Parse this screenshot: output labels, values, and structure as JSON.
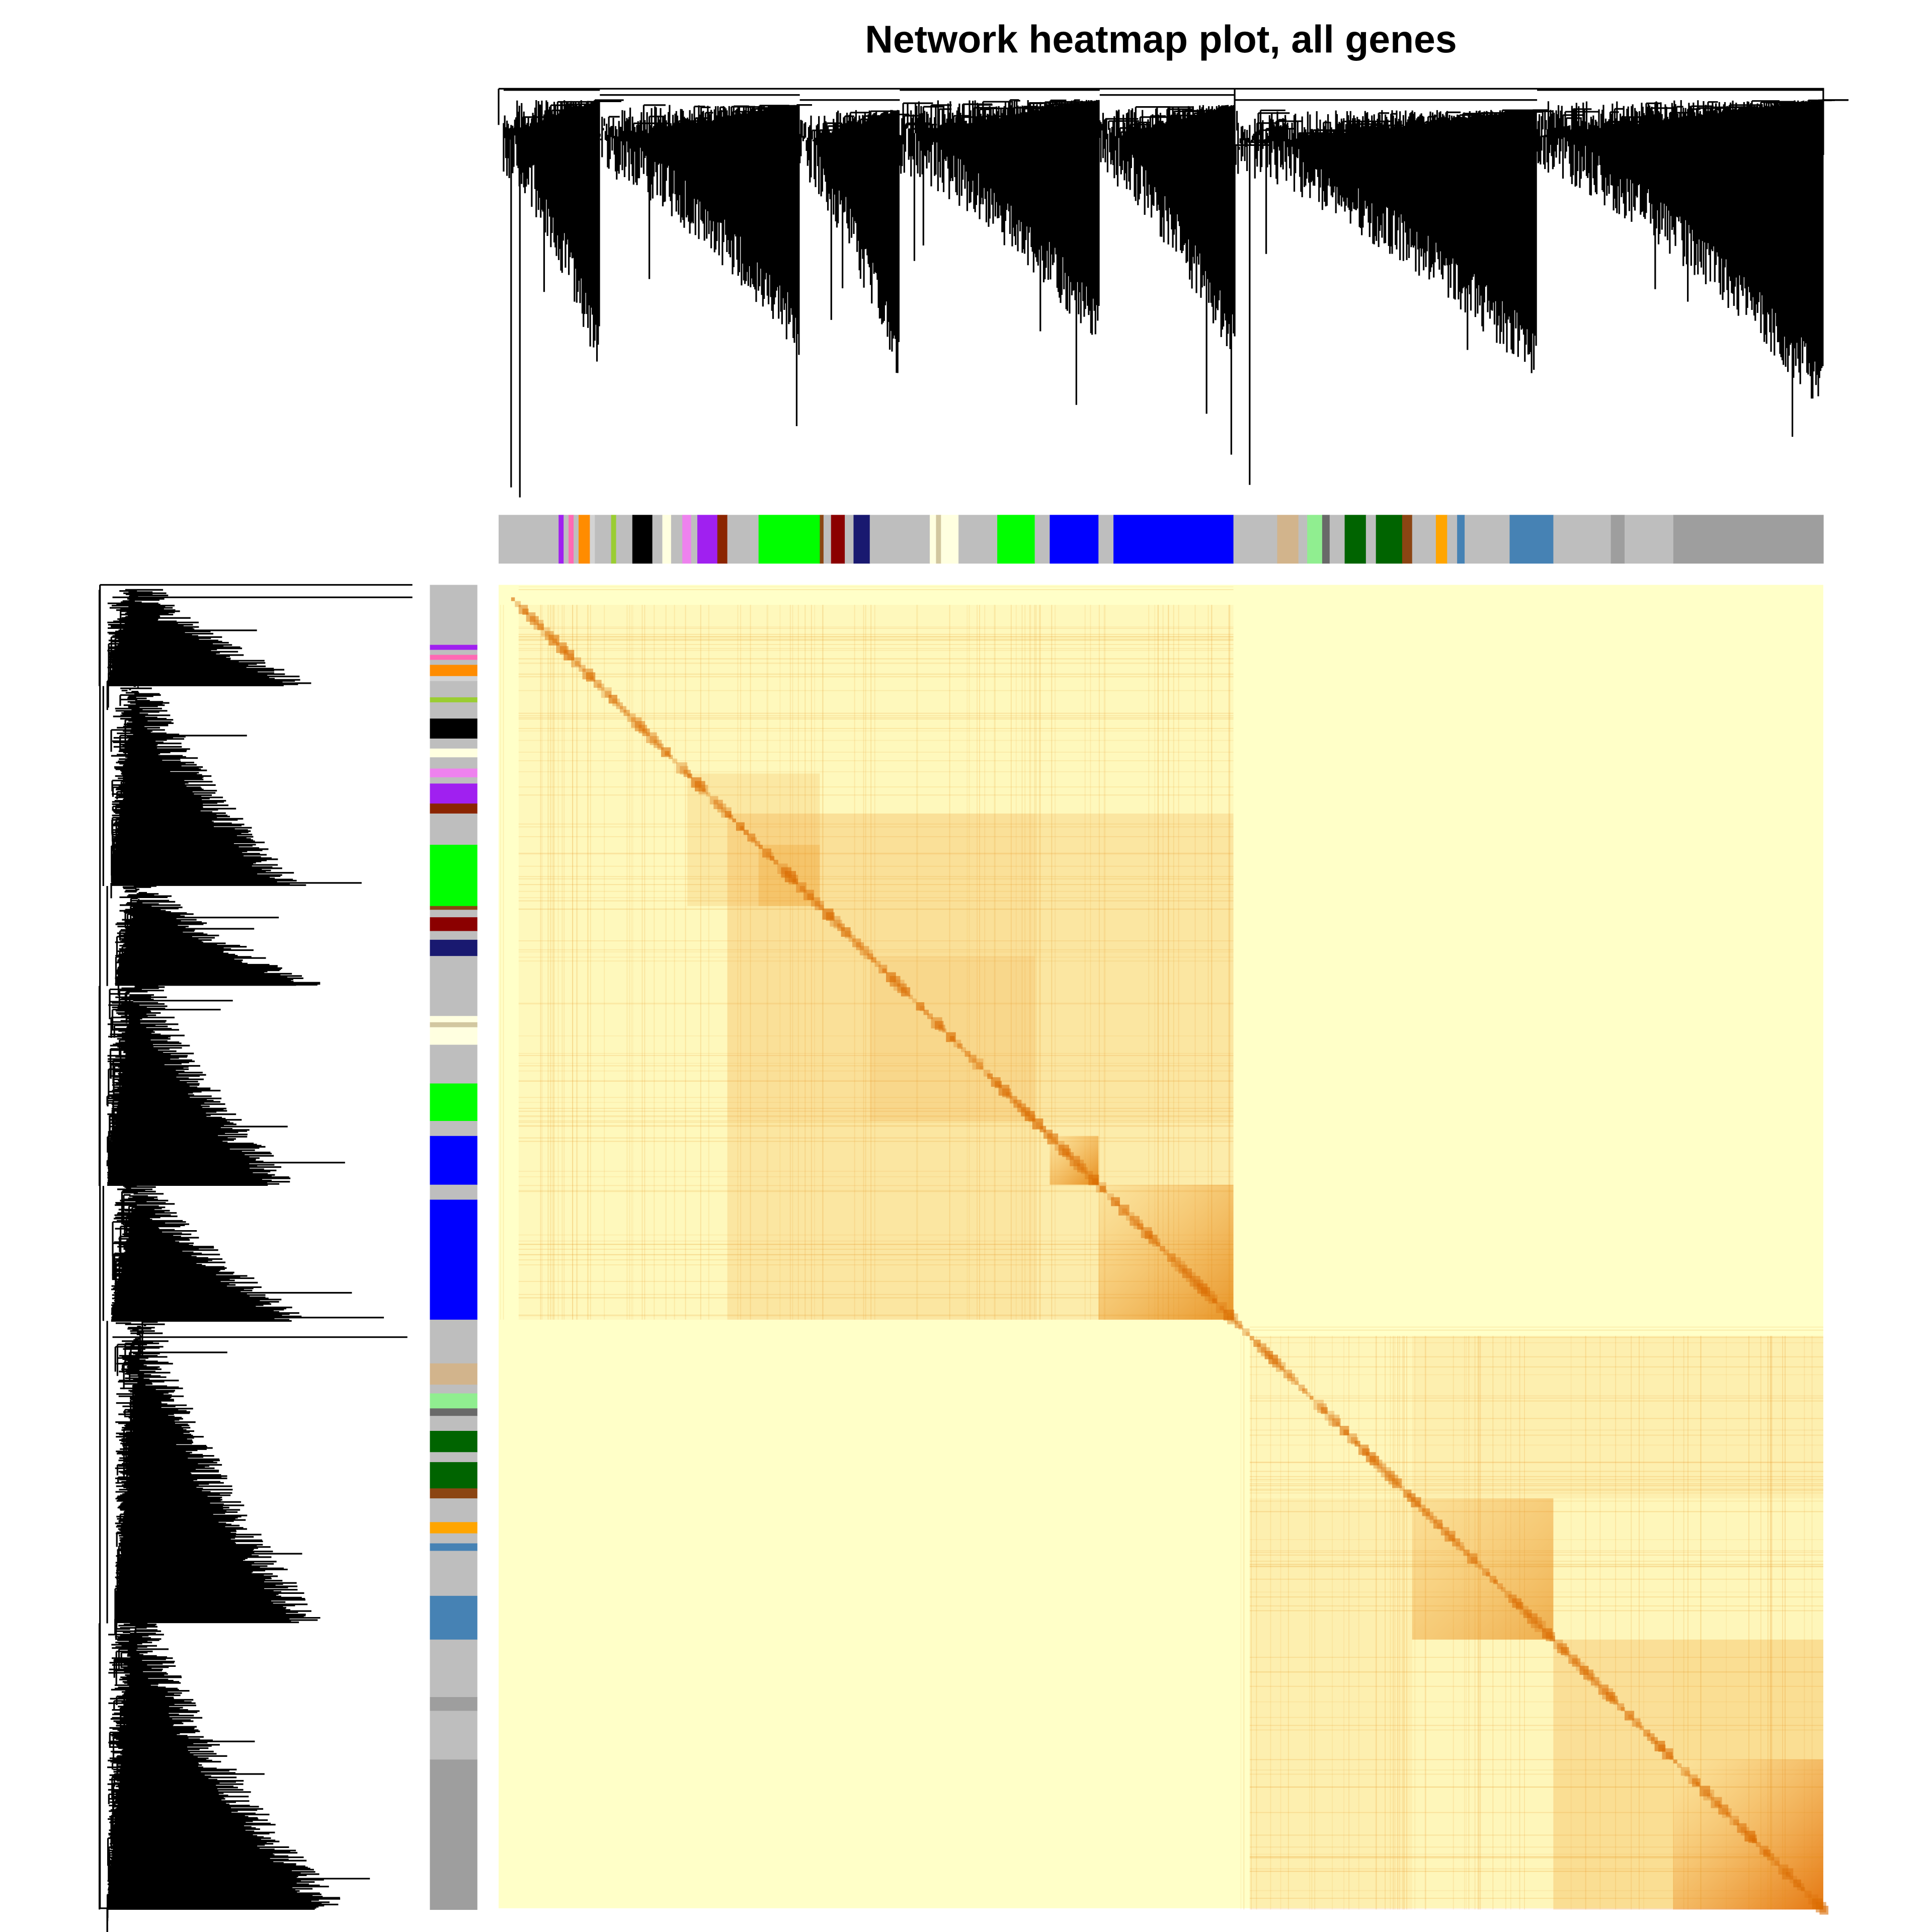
{
  "chart_data": {
    "type": "heatmap",
    "title": "Network heatmap plot, all genes"
  }
}
